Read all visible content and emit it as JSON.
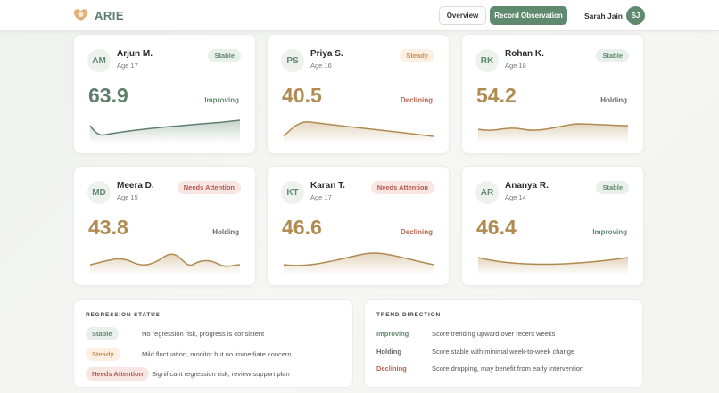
{
  "header": {
    "brand": "ARIE",
    "nav": [
      "Overview",
      "Record Observation"
    ],
    "user": {
      "name": "Sarah Jain",
      "initials": "SJ"
    }
  },
  "students": [
    {
      "initials": "AM",
      "name": "Arjun M.",
      "age": "Age 17",
      "status": "Stable",
      "score": 63.9,
      "trend": "Improving"
    },
    {
      "initials": "PS",
      "name": "Priya S.",
      "age": "Age 16",
      "status": "Steady",
      "score": 40.5,
      "trend": "Declining"
    },
    {
      "initials": "RK",
      "name": "Rohan K.",
      "age": "Age 18",
      "status": "Stable",
      "score": 54.2,
      "trend": "Holding"
    },
    {
      "initials": "MD",
      "name": "Meera D.",
      "age": "Age 15",
      "status": "Needs Attention",
      "score": 43.8,
      "trend": "Holding"
    },
    {
      "initials": "KT",
      "name": "Karan T.",
      "age": "Age 17",
      "status": "Needs Attention",
      "score": 46.6,
      "trend": "Declining"
    },
    {
      "initials": "AR",
      "name": "Ananya R.",
      "age": "Age 14",
      "status": "Stable",
      "score": 46.4,
      "trend": "Improving"
    }
  ],
  "regression_status": {
    "title": "REGRESSION STATUS",
    "rows": [
      {
        "label": "Stable",
        "description": "No regression risk, progress is consistent"
      },
      {
        "label": "Steady",
        "description": "Mild fluctuation, monitor but no immediate concern"
      },
      {
        "label": "Needs Attention",
        "description": "Significant regression risk, review support plan"
      }
    ]
  },
  "trend_direction": {
    "title": "TREND DIRECTION",
    "rows": [
      {
        "label": "Improving",
        "description": "Score trending upward over recent weeks"
      },
      {
        "label": "Holding",
        "description": "Score stable with minimal week-to-week change"
      },
      {
        "label": "Declining",
        "description": "Score dropping, may benefit from early intervention"
      }
    ]
  }
}
